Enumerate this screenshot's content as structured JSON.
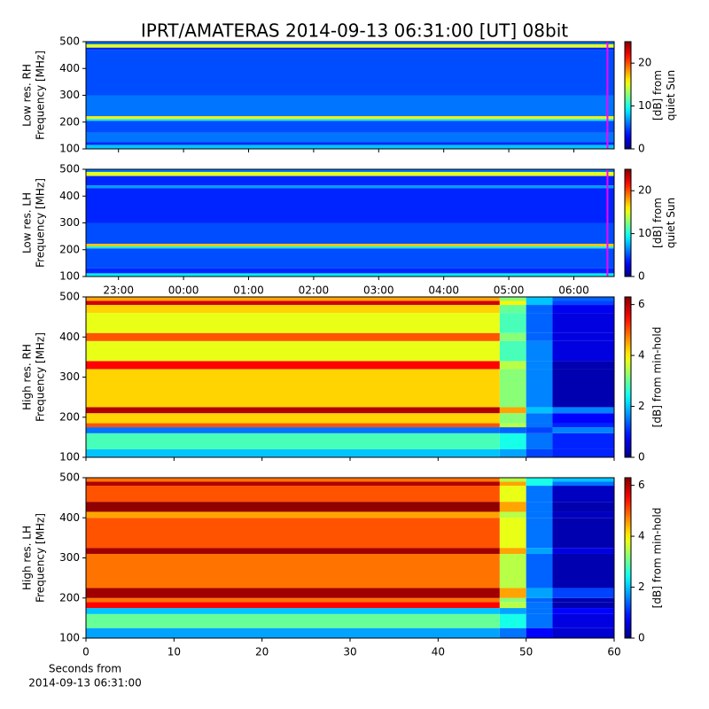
{
  "title": "IPRT/AMATERAS 2014-09-13 06:31:00 [UT]   08bit",
  "chart_data": [
    {
      "type": "heatmap",
      "cmap": "jet",
      "ylabel": [
        "Low res. RH",
        "Frequency [MHz]"
      ],
      "clabel": [
        "[dB] from",
        "quiet Sun"
      ],
      "xlim": [
        22.5,
        30.62
      ],
      "ylim": [
        100,
        500
      ],
      "yticks": [
        100,
        200,
        300,
        400,
        500
      ],
      "xticks": [
        {
          "value": 23,
          "label": "23:00"
        },
        {
          "value": 24,
          "label": "00:00"
        },
        {
          "value": 25,
          "label": "01:00"
        },
        {
          "value": 26,
          "label": "02:00"
        },
        {
          "value": 27,
          "label": "03:00"
        },
        {
          "value": 28,
          "label": "04:00"
        },
        {
          "value": 29,
          "label": "05:00"
        },
        {
          "value": 30,
          "label": "06:00"
        }
      ],
      "xticklabels": false,
      "clim": [
        0,
        25
      ],
      "cticks": [
        0,
        10,
        20
      ],
      "x_edges": [
        22.5,
        30.62
      ],
      "y_edges": [
        100,
        115,
        125,
        160,
        205,
        212,
        222,
        300,
        470,
        478,
        490,
        500
      ],
      "values": [
        [
          8
        ],
        [
          4
        ],
        [
          6
        ],
        [
          5
        ],
        [
          9
        ],
        [
          16
        ],
        [
          6
        ],
        [
          5
        ],
        [
          4
        ],
        [
          15
        ],
        [
          6
        ]
      ],
      "marker": {
        "x": 30.517,
        "color": "#ff00ff"
      }
    },
    {
      "type": "heatmap",
      "cmap": "jet",
      "ylabel": [
        "Low res. LH",
        "Frequency [MHz]"
      ],
      "clabel": [
        "[dB] from",
        "quiet Sun"
      ],
      "xlim": [
        22.5,
        30.62
      ],
      "ylim": [
        100,
        500
      ],
      "yticks": [
        100,
        200,
        300,
        400,
        500
      ],
      "xticks": [
        {
          "value": 23,
          "label": "23:00"
        },
        {
          "value": 24,
          "label": "00:00"
        },
        {
          "value": 25,
          "label": "01:00"
        },
        {
          "value": 26,
          "label": "02:00"
        },
        {
          "value": 27,
          "label": "03:00"
        },
        {
          "value": 28,
          "label": "04:00"
        },
        {
          "value": 29,
          "label": "05:00"
        },
        {
          "value": 30,
          "label": "06:00"
        }
      ],
      "xticklabels": true,
      "clim": [
        0,
        25
      ],
      "cticks": [
        0,
        10,
        20
      ],
      "x_edges": [
        22.5,
        30.62
      ],
      "y_edges": [
        100,
        112,
        130,
        205,
        212,
        222,
        300,
        430,
        440,
        475,
        490,
        500
      ],
      "values": [
        [
          9
        ],
        [
          4
        ],
        [
          5
        ],
        [
          9
        ],
        [
          17
        ],
        [
          5
        ],
        [
          4
        ],
        [
          7
        ],
        [
          4
        ],
        [
          15
        ],
        [
          6
        ]
      ],
      "marker": {
        "x": 30.517,
        "color": "#ff00ff"
      }
    },
    {
      "type": "heatmap",
      "cmap": "jet",
      "ylabel": [
        "High res. RH",
        "Frequency [MHz]"
      ],
      "clabel": [
        "[dB] from min-hold"
      ],
      "xlim": [
        0,
        60
      ],
      "ylim": [
        100,
        500
      ],
      "yticks": [
        100,
        200,
        300,
        400,
        500
      ],
      "xticks": [
        0,
        10,
        20,
        30,
        40,
        50,
        60
      ],
      "xticklabels": false,
      "clim": [
        0,
        6.3
      ],
      "cticks": [
        0,
        2,
        4,
        6
      ],
      "x_edges": [
        0,
        47,
        50,
        53,
        60
      ],
      "y_edges": [
        100,
        120,
        160,
        175,
        185,
        210,
        225,
        320,
        340,
        390,
        410,
        460,
        480,
        490,
        500
      ],
      "values": [
        [
          2,
          1.8,
          1.2,
          1
        ],
        [
          2.8,
          2.5,
          1.5,
          1
        ],
        [
          1.5,
          1.4,
          1.2,
          1.6
        ],
        [
          5,
          3.5,
          1.5,
          1
        ],
        [
          4.2,
          3.2,
          1.5,
          0.8
        ],
        [
          6,
          4.5,
          2,
          1.6
        ],
        [
          4.2,
          3.2,
          1.6,
          0.3
        ],
        [
          5.5,
          3.5,
          1.6,
          0.3
        ],
        [
          3.8,
          2.8,
          1.6,
          0.6
        ],
        [
          5,
          3.2,
          1.4,
          0.6
        ],
        [
          3.8,
          2.8,
          1.4,
          0.6
        ],
        [
          4.2,
          3,
          1.4,
          0.7
        ],
        [
          5.8,
          4,
          2,
          1.2
        ],
        [
          4.5,
          3.2,
          2,
          1.4
        ]
      ]
    },
    {
      "type": "heatmap",
      "cmap": "jet",
      "ylabel": [
        "High res. LH",
        "Frequency [MHz]"
      ],
      "clabel": [
        "[dB] from min-hold"
      ],
      "xlim": [
        0,
        60
      ],
      "ylim": [
        100,
        500
      ],
      "yticks": [
        100,
        200,
        300,
        400,
        500
      ],
      "xticks": [
        0,
        10,
        20,
        30,
        40,
        50,
        60
      ],
      "xticklabels": true,
      "clim": [
        0,
        6.3
      ],
      "cticks": [
        0,
        2,
        4,
        6
      ],
      "xlabel": [
        "Seconds from",
        "2014-09-13 06:31:00"
      ],
      "x_edges": [
        0,
        47,
        50,
        53,
        60
      ],
      "y_edges": [
        100,
        125,
        160,
        175,
        190,
        200,
        225,
        310,
        325,
        400,
        415,
        440,
        480,
        490,
        500
      ],
      "values": [
        [
          1.8,
          1.5,
          0.8,
          0.5
        ],
        [
          3,
          2.5,
          1.5,
          0.6
        ],
        [
          2,
          1.8,
          1.5,
          0.8
        ],
        [
          5.5,
          3.5,
          1.5,
          0.3
        ],
        [
          4.8,
          3.2,
          1.4,
          0.3
        ],
        [
          6.1,
          4.5,
          1.8,
          1.2
        ],
        [
          4.8,
          3.5,
          1.4,
          0.3
        ],
        [
          6.1,
          4.5,
          1.8,
          0.6
        ],
        [
          5,
          3.8,
          1.5,
          0.3
        ],
        [
          4.5,
          3.5,
          1.5,
          0.4
        ],
        [
          6.2,
          4.5,
          1.5,
          0.3
        ],
        [
          5,
          3.8,
          1.5,
          0.4
        ],
        [
          6,
          4.5,
          2.5,
          1.5
        ],
        [
          4.8,
          3.5,
          2.5,
          2
        ]
      ]
    }
  ]
}
